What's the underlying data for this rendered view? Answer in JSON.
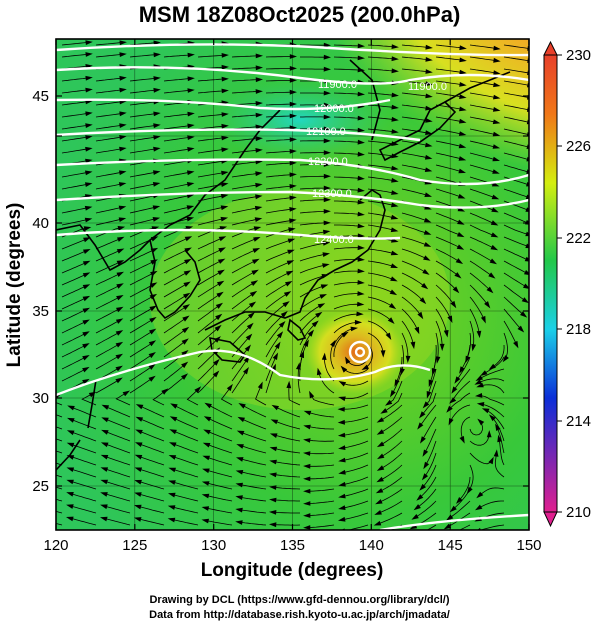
{
  "title": "MSM 18Z08Oct2025 (200.0hPa)",
  "x_axis": {
    "label": "Longitude (degrees)",
    "range": [
      120,
      150
    ],
    "ticks": [
      "120",
      "125",
      "130",
      "135",
      "140",
      "145",
      "150"
    ]
  },
  "y_axis": {
    "label": "Latitude  (degrees)",
    "range": [
      22.4,
      47.6
    ],
    "ticks": [
      "25",
      "30",
      "35",
      "40",
      "45"
    ]
  },
  "colorbar": {
    "range": [
      210,
      230
    ],
    "ticks": [
      "230",
      "226",
      "222",
      "218",
      "214",
      "210"
    ],
    "colors": [
      "#e0208f",
      "#0b2fd8",
      "#1bd0e8",
      "#22c84a",
      "#d4ee10",
      "#f07818",
      "#e8402a"
    ]
  },
  "contour_labels": [
    "11900.0",
    "11900.0",
    "12000.0",
    "12100.0",
    "12200.0",
    "12300.0",
    "12400.0"
  ],
  "credits": [
    "Drawing by DCL (https://www.gfd-dennou.org/library/dcl/)",
    "Data from http://database.rish.kyoto-u.ac.jp/arch/jmadata/"
  ]
}
